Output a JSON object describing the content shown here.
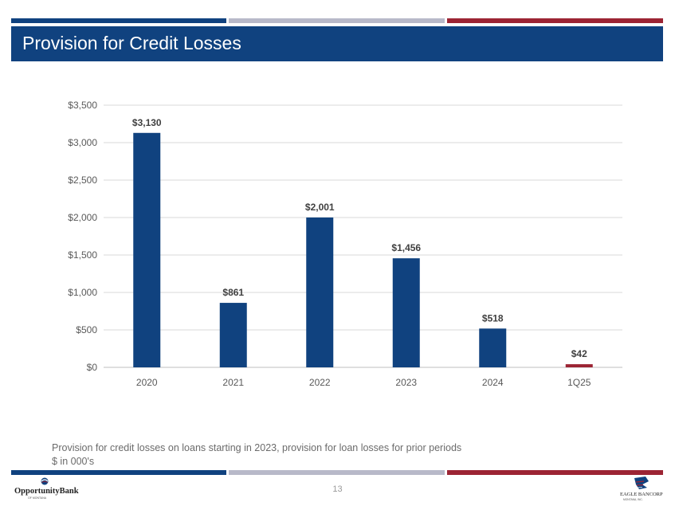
{
  "header": {
    "title": "Provision for Credit Losses",
    "stripe_colors": [
      "#10427f",
      "#b8b9c9",
      "#9c2434"
    ]
  },
  "chart_data": {
    "type": "bar",
    "categories": [
      "2020",
      "2021",
      "2022",
      "2023",
      "2024",
      "1Q25"
    ],
    "values": [
      3130,
      861,
      2001,
      1456,
      518,
      42
    ],
    "value_labels": [
      "$3,130",
      "$861",
      "$2,001",
      "$1,456",
      "$518",
      "$42"
    ],
    "bar_colors": [
      "#10427f",
      "#10427f",
      "#10427f",
      "#10427f",
      "#10427f",
      "#9c2434"
    ],
    "y_ticks": [
      0,
      500,
      1000,
      1500,
      2000,
      2500,
      3000,
      3500
    ],
    "y_tick_labels": [
      "$0",
      "$500",
      "$1,000",
      "$1,500",
      "$2,000",
      "$2,500",
      "$3,000",
      "$3,500"
    ],
    "ylim": [
      0,
      3500
    ],
    "grid": true,
    "title": "",
    "xlabel": "",
    "ylabel": ""
  },
  "footnotes": {
    "line1": "Provision for credit losses on loans starting in 2023, provision for loan losses for prior periods",
    "line2": "$ in 000's"
  },
  "footer": {
    "page_number": "13",
    "left_logo_text": "OpportunityBank",
    "left_logo_subtext": "OF MONTANA",
    "right_logo_text": "EAGLE BANCORP",
    "right_logo_subtext": "MONTANA, INC."
  }
}
